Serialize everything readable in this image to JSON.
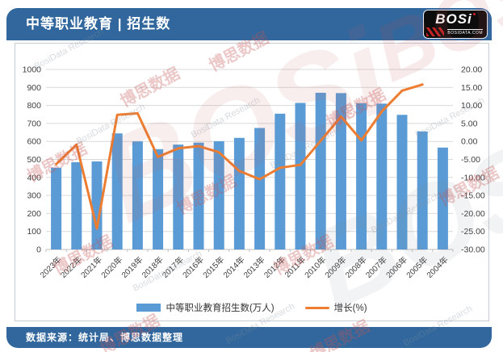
{
  "header": {
    "title": "中等职业教育 | 招生数",
    "logo": {
      "text": "BOSi",
      "subtext": "BOSIDATA.COM"
    }
  },
  "footer": {
    "source_text": "数据来源：统计局、博思数据整理"
  },
  "watermark": {
    "cn": "博思数据",
    "en": "BosiData Research",
    "logo": "BOSi"
  },
  "colors": {
    "header_bg": "#31679D",
    "bar": "#5B9BD5",
    "line": "#ED7D31",
    "grid": "#D9D9D9",
    "axis_text": "#404040",
    "panel_border": "#C6CDD6",
    "watermark_red": "#C55454",
    "watermark_gray": "#87919B"
  },
  "chart_data": {
    "type": "bar+line",
    "title": "中等职业教育 | 招生数",
    "categories": [
      "2023年",
      "2022年",
      "2021年",
      "2020年",
      "2019年",
      "2018年",
      "2017年",
      "2016年",
      "2015年",
      "2014年",
      "2013年",
      "2012年",
      "2011年",
      "2010年",
      "2009年",
      "2008年",
      "2007年",
      "2006年",
      "2005年",
      "2004年"
    ],
    "series": [
      {
        "name": "中等职业教育招生数(万人)",
        "type": "bar",
        "axis": "left",
        "color": "#5B9BD5",
        "values": [
          454.0,
          484.8,
          489.0,
          644.7,
          600.4,
          557.1,
          582.4,
          593.3,
          601.2,
          619.8,
          674.8,
          754.1,
          813.9,
          870.4,
          868.5,
          812.1,
          810.0,
          747.8,
          655.7,
          566.0
        ]
      },
      {
        "name": "增长(%)",
        "type": "line",
        "axis": "right",
        "color": "#ED7D31",
        "values": [
          -6.3,
          -0.9,
          -24.2,
          7.4,
          7.8,
          -4.3,
          -1.9,
          -1.3,
          -3.0,
          -8.2,
          -10.5,
          -7.3,
          -6.5,
          0.2,
          6.9,
          0.3,
          8.3,
          14.1,
          15.8,
          null
        ]
      }
    ],
    "left_axis": {
      "min": 0,
      "max": 1000,
      "step": 100,
      "decimals": 0
    },
    "right_axis": {
      "min": -30,
      "max": 20,
      "step": 5,
      "decimals": 2
    },
    "grid": true,
    "legend_position": "bottom"
  }
}
